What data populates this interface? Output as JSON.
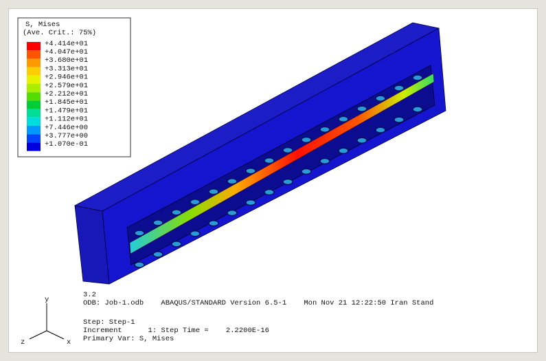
{
  "legend": {
    "title": "S, Mises",
    "subtitle": "(Ave. Crit.: 75%)",
    "entries": [
      {
        "label": "+4.414e+01",
        "color": "#ff0000"
      },
      {
        "label": "+4.047e+01",
        "color": "#ff5500"
      },
      {
        "label": "+3.680e+01",
        "color": "#ff9900"
      },
      {
        "label": "+3.313e+01",
        "color": "#ffcc00"
      },
      {
        "label": "+2.946e+01",
        "color": "#e6f200"
      },
      {
        "label": "+2.579e+01",
        "color": "#aaee00"
      },
      {
        "label": "+2.212e+01",
        "color": "#55dd00"
      },
      {
        "label": "+1.845e+01",
        "color": "#00cc33"
      },
      {
        "label": "+1.479e+01",
        "color": "#00dd99"
      },
      {
        "label": "+1.112e+01",
        "color": "#00dddd"
      },
      {
        "label": "+7.446e+00",
        "color": "#0099ff"
      },
      {
        "label": "+3.777e+00",
        "color": "#0044ff"
      },
      {
        "label": "+1.070e-01",
        "color": "#0000dd"
      }
    ]
  },
  "footer": {
    "lines": [
      "3.2",
      "ODB: Job-1.odb    ABAQUS/STANDARD Version 6.5-1    Mon Nov 21 12:22:50 Iran Stand",
      "Step: Step-1",
      "Increment      1: Step Time =    2.2200E-16",
      "Primary Var: S, Mises"
    ]
  },
  "triad": {
    "y": "y",
    "z": "z",
    "x": "x"
  }
}
